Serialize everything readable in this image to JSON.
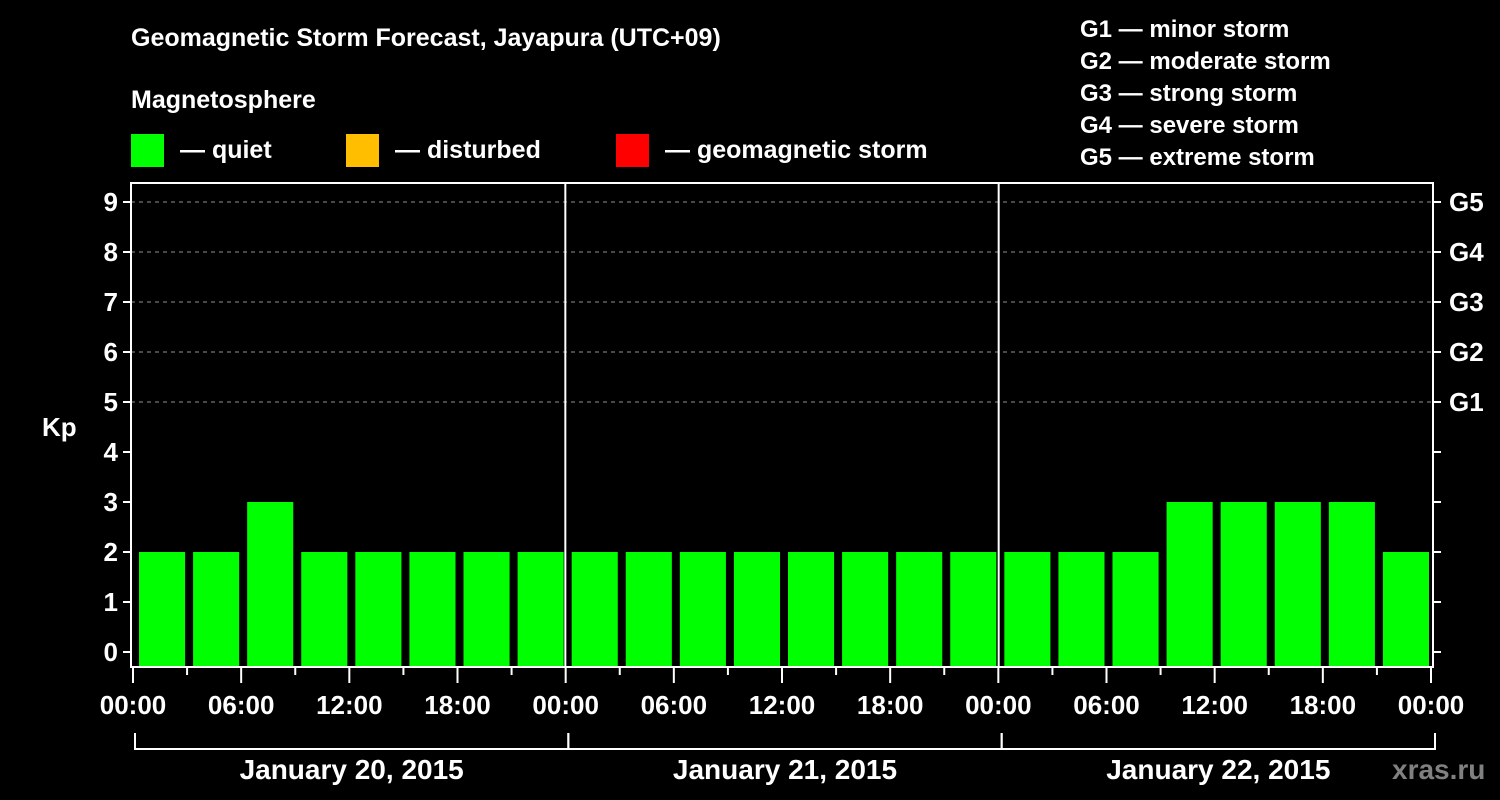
{
  "title": "Geomagnetic Storm Forecast, Jayapura (UTC+09)",
  "subtitle": "Magnetosphere",
  "legend": [
    {
      "label": "— quiet",
      "color": "#00ff00"
    },
    {
      "label": "— disturbed",
      "color": "#ffbf00"
    },
    {
      "label": "— geomagnetic storm",
      "color": "#ff0000"
    }
  ],
  "storm_scale": [
    "G1 — minor storm",
    "G2 — moderate storm",
    "G3 — strong storm",
    "G4 — severe storm",
    "G5 — extreme storm"
  ],
  "y_axis_label": "Kp",
  "y_ticks": [
    "0",
    "1",
    "2",
    "3",
    "4",
    "5",
    "6",
    "7",
    "8",
    "9"
  ],
  "right_ticks": [
    {
      "kp": 5,
      "label": "G1"
    },
    {
      "kp": 6,
      "label": "G2"
    },
    {
      "kp": 7,
      "label": "G3"
    },
    {
      "kp": 8,
      "label": "G4"
    },
    {
      "kp": 9,
      "label": "G5"
    }
  ],
  "x_tick_labels": [
    "00:00",
    "06:00",
    "12:00",
    "18:00",
    "00:00",
    "06:00",
    "12:00",
    "18:00",
    "00:00",
    "06:00",
    "12:00",
    "18:00",
    "00:00"
  ],
  "dates": [
    "January 20, 2015",
    "January 21, 2015",
    "January 22, 2015"
  ],
  "watermark": "xras.ru",
  "chart_data": {
    "type": "bar",
    "title": "Geomagnetic Storm Forecast, Jayapura (UTC+09)",
    "subtitle": "Magnetosphere",
    "xlabel": "",
    "ylabel": "Kp",
    "ylim": [
      0,
      9
    ],
    "grid": "dashed horizontal at Kp 5-9",
    "legend_position": "top",
    "categories": [
      "Jan 20 00:00",
      "Jan 20 03:00",
      "Jan 20 06:00",
      "Jan 20 09:00",
      "Jan 20 12:00",
      "Jan 20 15:00",
      "Jan 20 18:00",
      "Jan 20 21:00",
      "Jan 21 00:00",
      "Jan 21 03:00",
      "Jan 21 06:00",
      "Jan 21 09:00",
      "Jan 21 12:00",
      "Jan 21 15:00",
      "Jan 21 18:00",
      "Jan 21 21:00",
      "Jan 22 00:00",
      "Jan 22 03:00",
      "Jan 22 06:00",
      "Jan 22 09:00",
      "Jan 22 12:00",
      "Jan 22 15:00",
      "Jan 22 18:00",
      "Jan 22 21:00"
    ],
    "values": [
      2,
      2,
      3,
      2,
      2,
      2,
      2,
      2,
      2,
      2,
      2,
      2,
      2,
      2,
      2,
      2,
      2,
      2,
      2,
      3,
      3,
      3,
      3,
      2
    ],
    "status": [
      "quiet",
      "quiet",
      "quiet",
      "quiet",
      "quiet",
      "quiet",
      "quiet",
      "quiet",
      "quiet",
      "quiet",
      "quiet",
      "quiet",
      "quiet",
      "quiet",
      "quiet",
      "quiet",
      "quiet",
      "quiet",
      "quiet",
      "quiet",
      "quiet",
      "quiet",
      "quiet",
      "quiet"
    ],
    "right_axis": {
      "5": "G1",
      "6": "G2",
      "7": "G3",
      "8": "G4",
      "9": "G5"
    }
  }
}
